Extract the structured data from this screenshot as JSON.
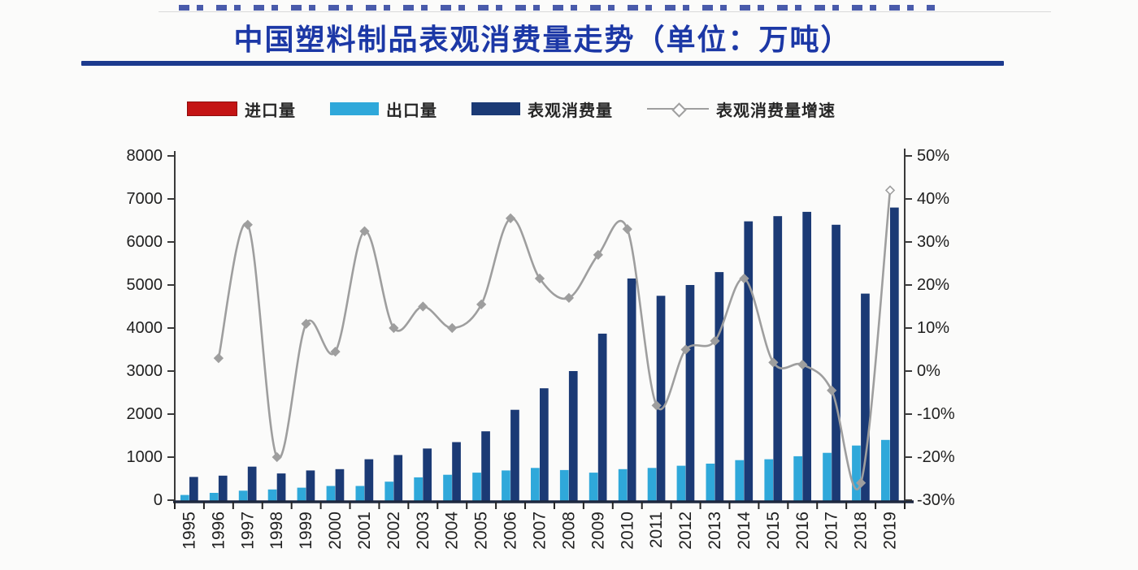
{
  "title": {
    "text": "中国塑料制品表观消费量走势（单位：万吨）"
  },
  "colors": {
    "title": "#1c38a6",
    "title_rule": "#1c3a8e",
    "import_red": "#c41414",
    "export_blue": "#2fa8da",
    "consumption_navy": "#1b3a75",
    "growth_gray": "#9e9e9e",
    "axis": "#3a3a3a",
    "x_axis": "#1e2940",
    "text": "#1f1f1f",
    "background": "#fbfbfa"
  },
  "chart_data": {
    "type": "bar",
    "subtype": "grouped bars with secondary-axis smoothed line",
    "title": "中国塑料制品表观消费量走势（单位：万吨）",
    "categories": [
      "1995",
      "1996",
      "1997",
      "1998",
      "1999",
      "2000",
      "2001",
      "2002",
      "2003",
      "2004",
      "2005",
      "2006",
      "2007",
      "2008",
      "2009",
      "2010",
      "2011",
      "2012",
      "2013",
      "2014",
      "2015",
      "2016",
      "2017",
      "2018",
      "2019"
    ],
    "series": [
      {
        "id": "import",
        "name": "进口量",
        "type": "bar",
        "axis": "left",
        "color": "#c41414",
        "values": [
          null,
          null,
          null,
          null,
          null,
          null,
          null,
          null,
          null,
          null,
          null,
          null,
          null,
          null,
          null,
          null,
          null,
          null,
          null,
          null,
          null,
          null,
          null,
          null,
          null
        ]
      },
      {
        "id": "export",
        "name": "出口量",
        "type": "bar",
        "axis": "left",
        "color": "#2fa8da",
        "values": [
          120,
          170,
          220,
          250,
          290,
          330,
          330,
          430,
          530,
          590,
          640,
          690,
          750,
          700,
          640,
          720,
          750,
          800,
          850,
          930,
          950,
          1020,
          1100,
          1270,
          1400
        ]
      },
      {
        "id": "consumption",
        "name": "表观消费量",
        "type": "bar",
        "axis": "left",
        "color": "#1b3a75",
        "values": [
          540,
          570,
          780,
          620,
          690,
          720,
          950,
          1050,
          1200,
          1350,
          1600,
          2100,
          2600,
          3000,
          3870,
          5150,
          4750,
          5000,
          5300,
          6480,
          6600,
          6700,
          6400,
          4800,
          6800
        ]
      },
      {
        "id": "growth",
        "name": "表观消费量增速",
        "type": "line",
        "axis": "right",
        "unit": "%",
        "color": "#9e9e9e",
        "marker": "diamond",
        "last_marker": "open-diamond",
        "values": [
          null,
          3,
          34,
          -20,
          11,
          4.5,
          32.5,
          10,
          15,
          10,
          15.5,
          35.5,
          21.5,
          17,
          27,
          33,
          -8,
          5,
          7,
          21.5,
          2,
          1.5,
          -4.5,
          -26,
          42
        ]
      }
    ],
    "axes": {
      "left": {
        "min": 0,
        "max": 8000,
        "step": 1000,
        "suffix": ""
      },
      "right": {
        "min": -30,
        "max": 50,
        "step": 10,
        "suffix": "%"
      },
      "x": {
        "label_rotation": -90
      }
    },
    "grid": false,
    "legend_position": "top"
  }
}
